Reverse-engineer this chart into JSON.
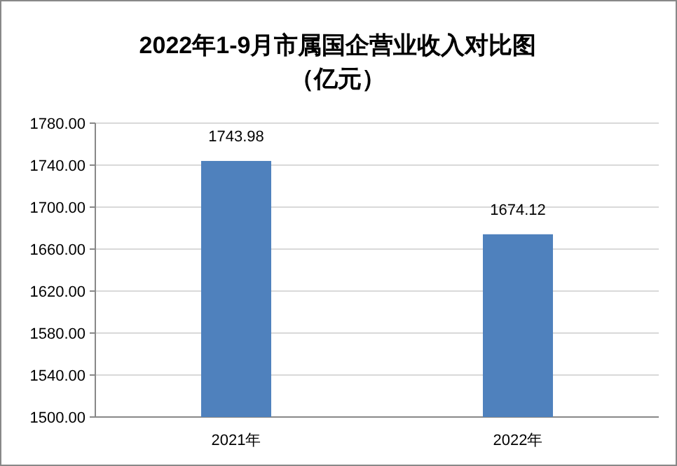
{
  "chart_data": {
    "type": "bar",
    "title": "2022年1-9月市属国企营业收入对比图",
    "subtitle": "（亿元）",
    "categories": [
      "2021年",
      "2022年"
    ],
    "values": [
      1743.98,
      1674.12
    ],
    "color": "#4f81bd",
    "data_labels": true,
    "ylim": [
      1500,
      1780
    ],
    "yticks": [
      {
        "value": 1500,
        "label": "1500.00"
      },
      {
        "value": 1540,
        "label": "1540.00"
      },
      {
        "value": 1580,
        "label": "1580.00"
      },
      {
        "value": 1620,
        "label": "1620.00"
      },
      {
        "value": 1660,
        "label": "1660.00"
      },
      {
        "value": 1700,
        "label": "1700.00"
      },
      {
        "value": 1740,
        "label": "1740.00"
      },
      {
        "value": 1780,
        "label": "1780.00"
      }
    ],
    "grid": "y"
  }
}
